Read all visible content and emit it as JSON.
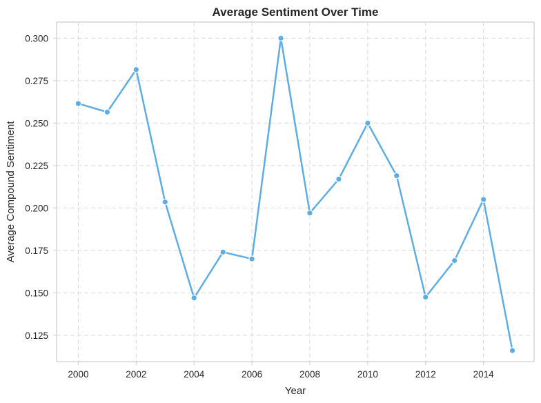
{
  "chart_data": {
    "type": "line",
    "title": "Average Sentiment Over Time",
    "xlabel": "Year",
    "ylabel": "Average Compound Sentiment",
    "xlim": [
      1999.25,
      2015.75
    ],
    "ylim": [
      0.1095,
      0.3095
    ],
    "x_ticks": [
      2000,
      2002,
      2004,
      2006,
      2008,
      2010,
      2012,
      2014
    ],
    "x_tick_labels": [
      "2000",
      "2002",
      "2004",
      "2006",
      "2008",
      "2010",
      "2012",
      "2014"
    ],
    "y_ticks": [
      0.125,
      0.15,
      0.175,
      0.2,
      0.225,
      0.25,
      0.275,
      0.3
    ],
    "y_tick_labels": [
      "0.125",
      "0.150",
      "0.175",
      "0.200",
      "0.225",
      "0.250",
      "0.275",
      "0.300"
    ],
    "grid": true,
    "series": [
      {
        "name": "Average Sentiment",
        "color": "#5dade2",
        "x": [
          2000,
          2001,
          2002,
          2003,
          2004,
          2005,
          2006,
          2007,
          2008,
          2009,
          2010,
          2011,
          2012,
          2013,
          2014,
          2015
        ],
        "values": [
          0.2615,
          0.2565,
          0.2815,
          0.2035,
          0.147,
          0.174,
          0.17,
          0.3,
          0.197,
          0.217,
          0.25,
          0.219,
          0.1475,
          0.169,
          0.205,
          0.116
        ]
      }
    ]
  }
}
